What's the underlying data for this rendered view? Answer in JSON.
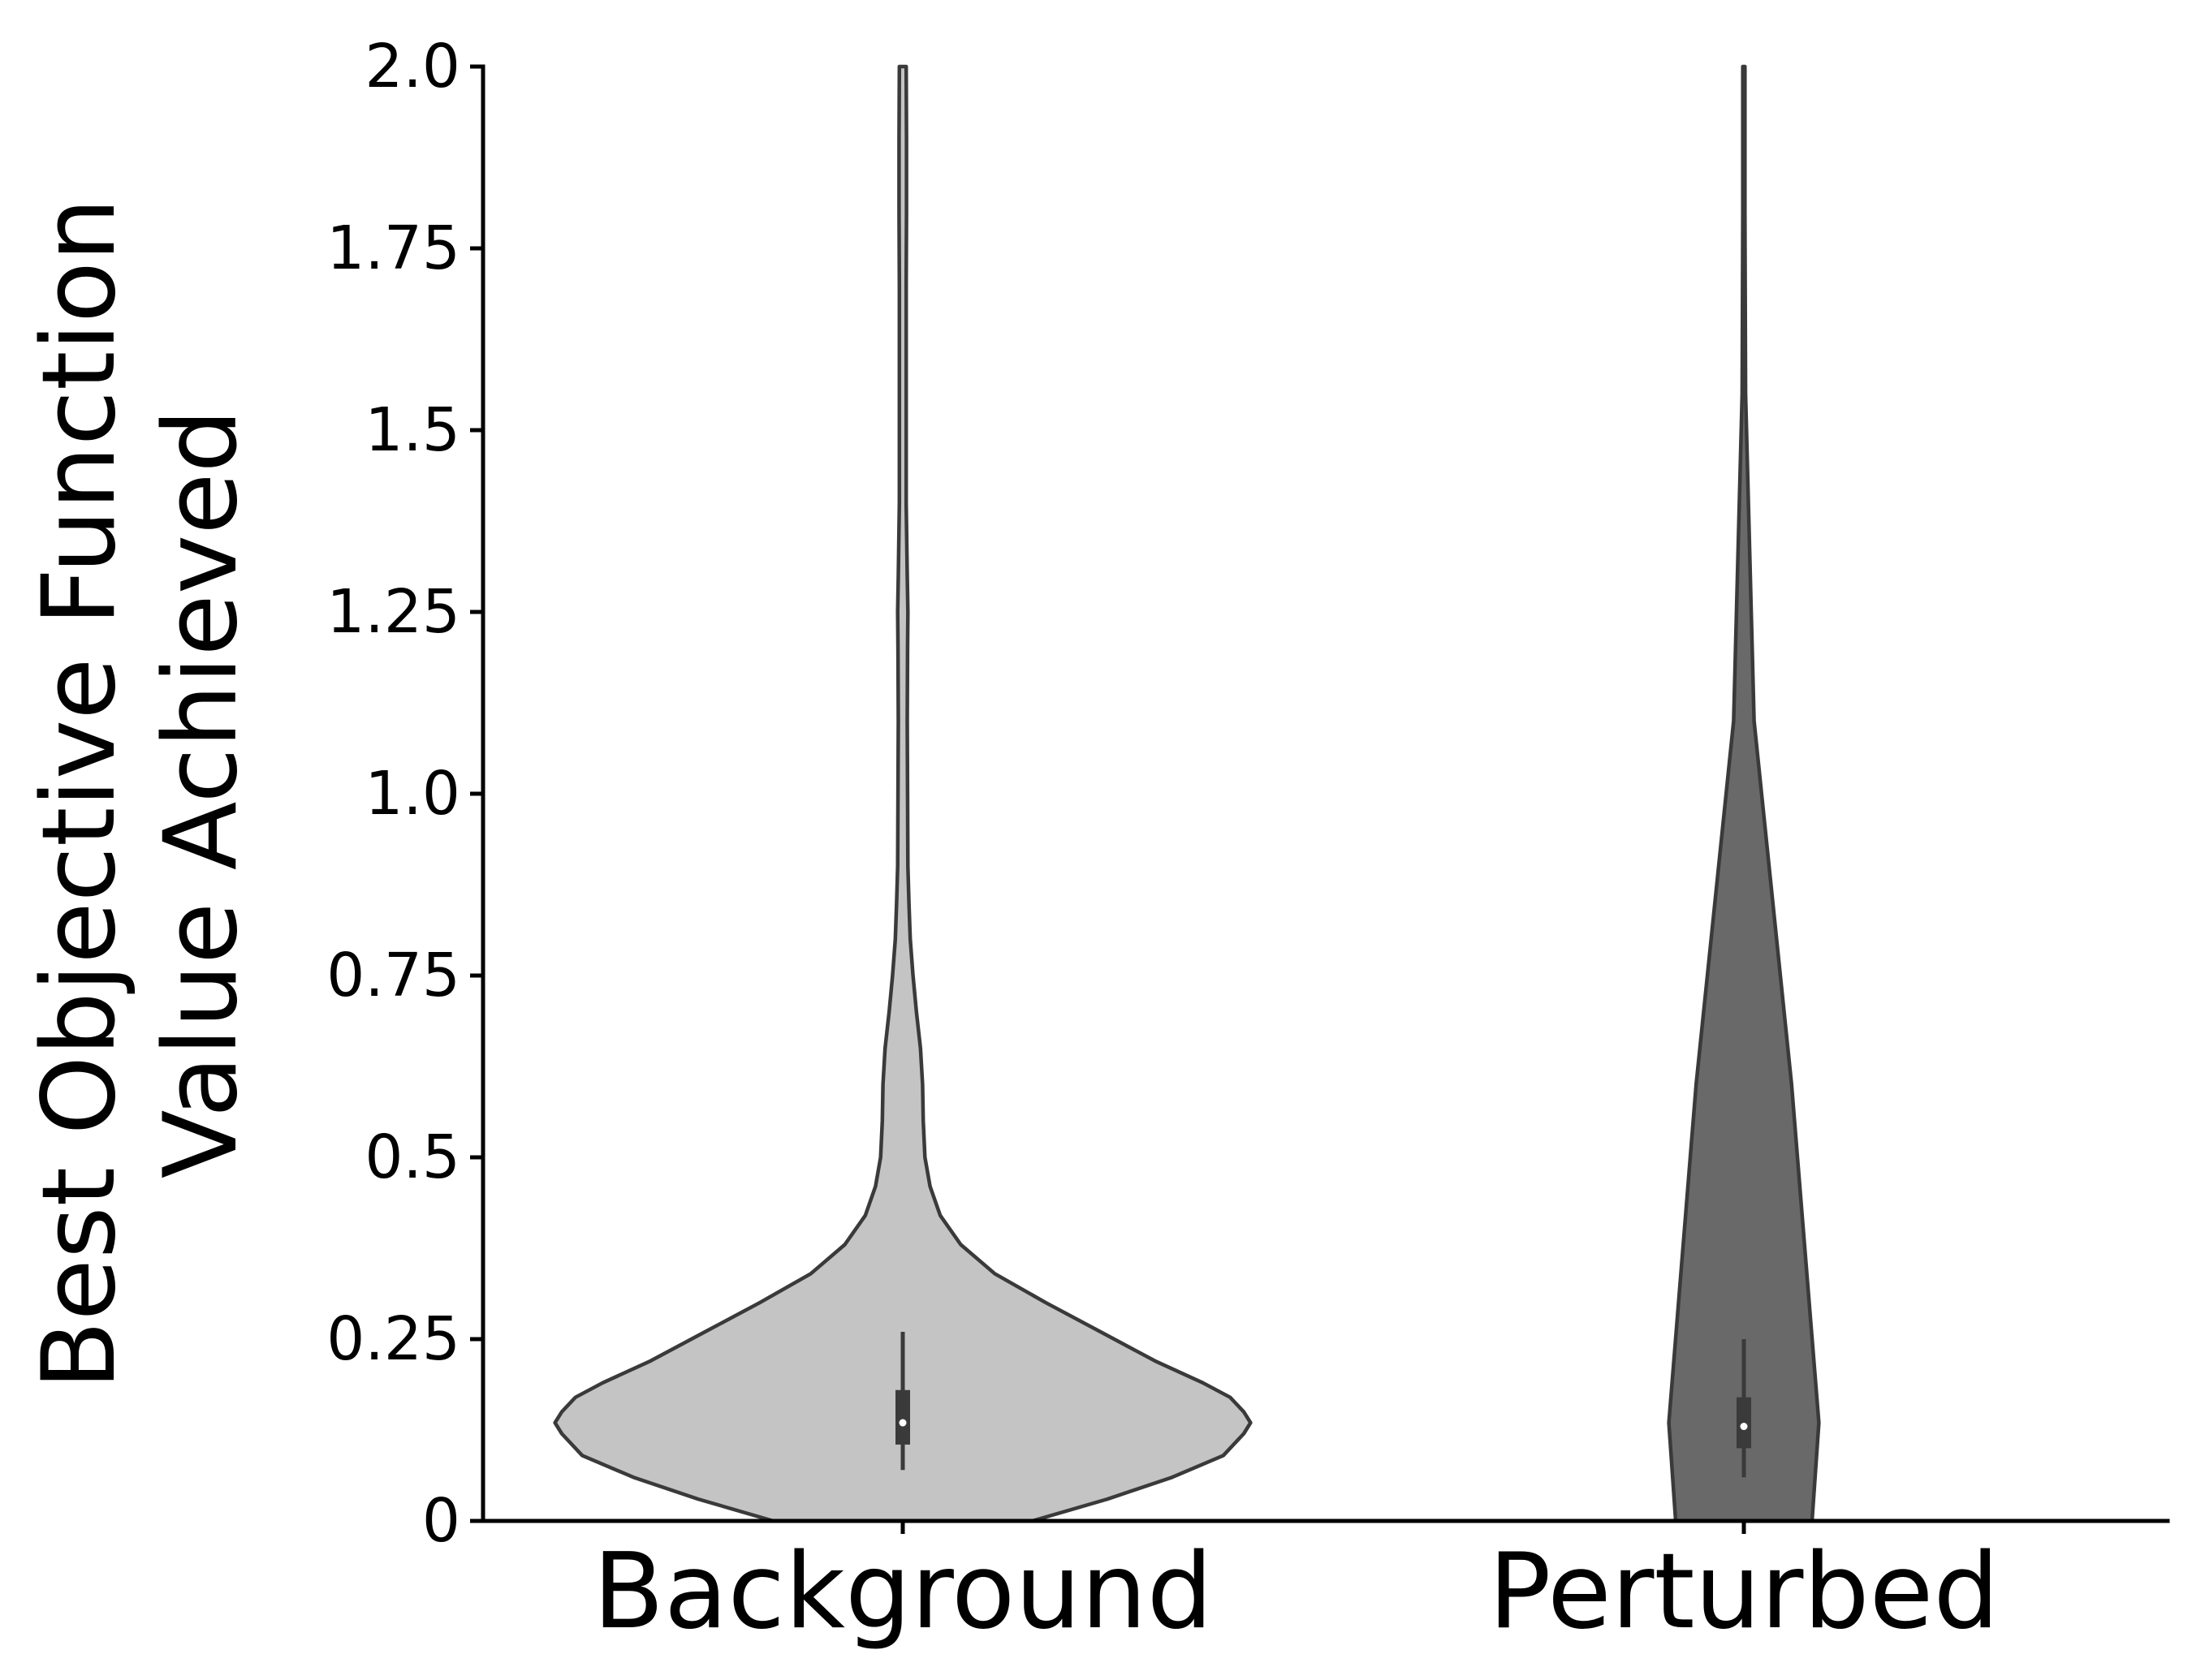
{
  "chart_data": {
    "type": "violin",
    "xlabel": "",
    "ylabel": [
      "Best Objective Function",
      "Value Achieved"
    ],
    "ylim": [
      0,
      2.0
    ],
    "yticks": [
      0,
      0.25,
      0.5,
      0.75,
      1.0,
      1.25,
      1.5,
      1.75,
      2.0
    ],
    "ytick_labels": [
      "0",
      "0.25",
      "0.5",
      "0.75",
      "1.0",
      "1.25",
      "1.5",
      "1.75",
      "2.0"
    ],
    "categories": [
      "Background",
      "Perturbed"
    ],
    "grid": false,
    "legend": "none",
    "series": [
      {
        "category": "Background",
        "color": "#c4c4c4",
        "median": 0.135,
        "q1": 0.105,
        "q3": 0.18,
        "whisker_low": 0.07,
        "whisker_high": 0.26,
        "density": [
          [
            0.0,
            0.38
          ],
          [
            0.03,
            0.6
          ],
          [
            0.06,
            0.79
          ],
          [
            0.09,
            0.94
          ],
          [
            0.12,
            1.0
          ],
          [
            0.135,
            1.02
          ],
          [
            0.15,
            1.0
          ],
          [
            0.17,
            0.96
          ],
          [
            0.19,
            0.88
          ],
          [
            0.22,
            0.74
          ],
          [
            0.26,
            0.58
          ],
          [
            0.3,
            0.42
          ],
          [
            0.34,
            0.27
          ],
          [
            0.38,
            0.17
          ],
          [
            0.42,
            0.11
          ],
          [
            0.46,
            0.08
          ],
          [
            0.5,
            0.065
          ],
          [
            0.55,
            0.06
          ],
          [
            0.6,
            0.058
          ],
          [
            0.65,
            0.052
          ],
          [
            0.7,
            0.04
          ],
          [
            0.75,
            0.03
          ],
          [
            0.8,
            0.022
          ],
          [
            0.85,
            0.018
          ],
          [
            0.9,
            0.015
          ],
          [
            1.0,
            0.014
          ],
          [
            1.1,
            0.013
          ],
          [
            1.2,
            0.014
          ],
          [
            1.25,
            0.015
          ],
          [
            1.3,
            0.013
          ],
          [
            1.4,
            0.01
          ],
          [
            1.5,
            0.01
          ],
          [
            1.6,
            0.01
          ],
          [
            1.7,
            0.01
          ],
          [
            1.8,
            0.011
          ],
          [
            1.9,
            0.011
          ],
          [
            2.0,
            0.01
          ]
        ]
      },
      {
        "category": "Perturbed",
        "color": "#696969",
        "median": 0.13,
        "q1": 0.1,
        "q3": 0.17,
        "whisker_low": 0.06,
        "whisker_high": 0.25,
        "density": [
          [
            0.0,
            0.2
          ],
          [
            0.135,
            0.22
          ],
          [
            0.6,
            0.14
          ],
          [
            1.1,
            0.03
          ],
          [
            1.55,
            0.005
          ],
          [
            1.8,
            0.003
          ],
          [
            2.0,
            0.003
          ]
        ]
      }
    ]
  }
}
